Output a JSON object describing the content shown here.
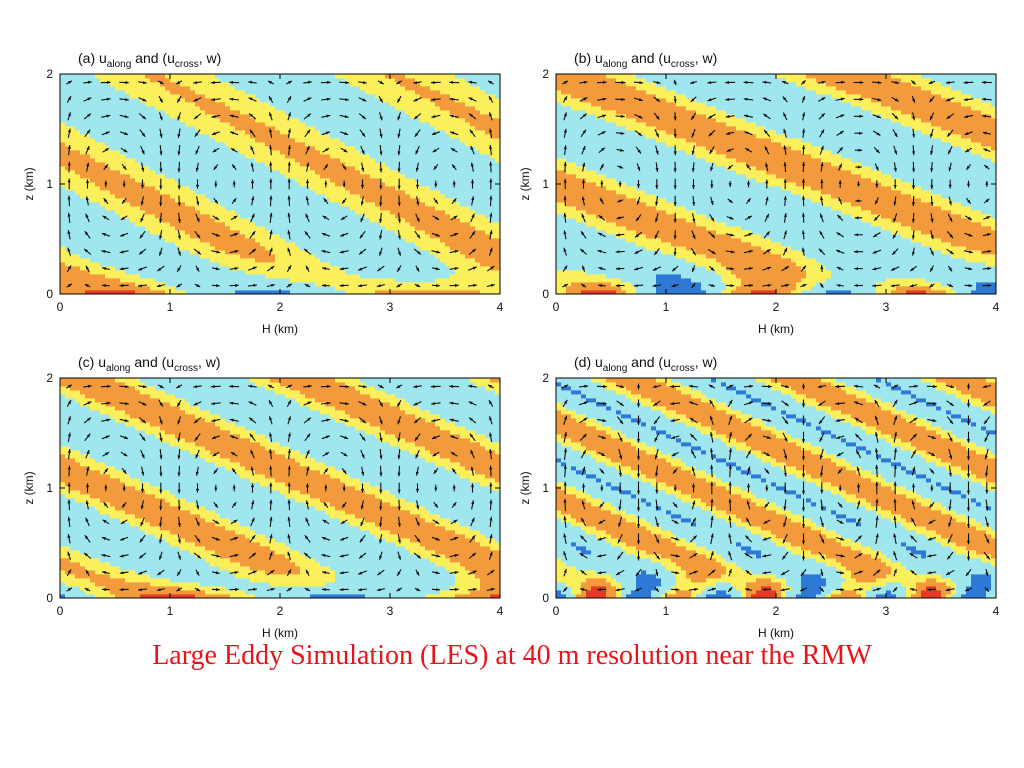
{
  "colors": {
    "yellow": "#fbf05c",
    "cyan": "#9fe6ee",
    "orange": "#f39a3c",
    "red": "#e63a26",
    "blue": "#2f79d6",
    "arrow": "#111111",
    "caption": "#e8141b"
  },
  "caption": "Large Eddy Simulation (LES) at 40 m resolution near the RMW",
  "chart_data": [
    {
      "type": "heatmap",
      "panel_label": "(a)",
      "title_prefix": "u",
      "title_sub1": "along",
      "title_mid": " and (u",
      "title_sub2": "cross",
      "title_suffix": ", w)",
      "xlabel": "H (km)",
      "ylabel": "z (km)",
      "xlim": [
        0,
        4
      ],
      "ylim": [
        0,
        2
      ],
      "xticks": [
        "0",
        "1",
        "2",
        "3",
        "4"
      ],
      "yticks": [
        "0",
        "1",
        "2"
      ],
      "pattern": "a"
    },
    {
      "type": "heatmap",
      "panel_label": "(b)",
      "title_prefix": "u",
      "title_sub1": "along",
      "title_mid": " and (u",
      "title_sub2": "cross",
      "title_suffix": ", w)",
      "xlabel": "H (km)",
      "ylabel": "z (km)",
      "xlim": [
        0,
        4
      ],
      "ylim": [
        0,
        2
      ],
      "xticks": [
        "0",
        "1",
        "2",
        "3",
        "4"
      ],
      "yticks": [
        "0",
        "1",
        "2"
      ],
      "pattern": "b"
    },
    {
      "type": "heatmap",
      "panel_label": "(c)",
      "title_prefix": "u",
      "title_sub1": "along",
      "title_mid": " and (u",
      "title_sub2": "cross",
      "title_suffix": ", w)",
      "xlabel": "H (km)",
      "ylabel": "z (km)",
      "xlim": [
        0,
        4
      ],
      "ylim": [
        0,
        2
      ],
      "xticks": [
        "0",
        "1",
        "2",
        "3",
        "4"
      ],
      "yticks": [
        "0",
        "1",
        "2"
      ],
      "pattern": "c"
    },
    {
      "type": "heatmap",
      "panel_label": "(d)",
      "title_prefix": "u",
      "title_sub1": "along",
      "title_mid": " and (u",
      "title_sub2": "cross",
      "title_suffix": ", w)",
      "xlabel": "H (km)",
      "ylabel": "z (km)",
      "xlim": [
        0,
        4
      ],
      "ylim": [
        0,
        2
      ],
      "xticks": [
        "0",
        "1",
        "2",
        "3",
        "4"
      ],
      "yticks": [
        "0",
        "1",
        "2"
      ],
      "pattern": "d"
    }
  ]
}
